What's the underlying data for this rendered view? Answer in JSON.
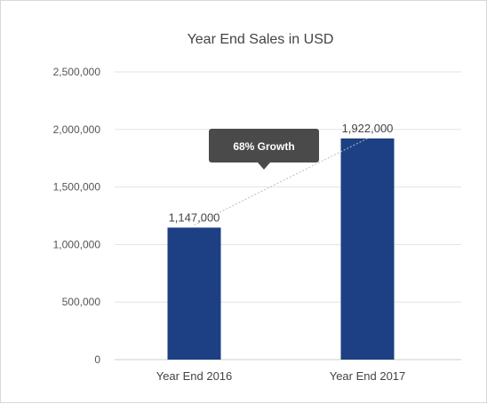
{
  "chart_data": {
    "type": "bar",
    "title": "Year End Sales in USD",
    "categories": [
      "Year End 2016",
      "Year End 2017"
    ],
    "values": [
      1147000,
      1922000
    ],
    "data_labels": [
      "1,147,000",
      "1,922,000"
    ],
    "yticks": [
      0,
      500000,
      1000000,
      1500000,
      2000000,
      2500000
    ],
    "ytick_labels": [
      "0",
      "500,000",
      "1,000,000",
      "1,500,000",
      "2,000,000",
      "2,500,000"
    ],
    "ylim": [
      0,
      2500000
    ],
    "bar_color": "#1d3f84",
    "grid": true,
    "annotation": {
      "text": "68% Growth",
      "connects": [
        "Year End 2016",
        "Year End 2017"
      ]
    }
  }
}
